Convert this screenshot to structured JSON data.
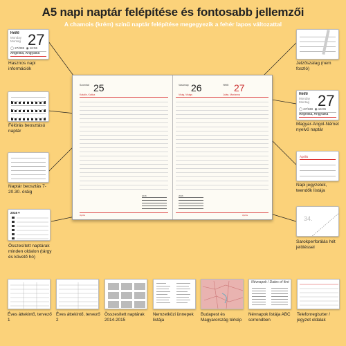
{
  "title": "A5 napi naptár felépítése és fontosabb jellemzői",
  "subtitle": "A chamois (krém) színű naptár felépítése megegyezik a fehér lapos változattal",
  "left_callouts": [
    {
      "label": "Hasznos napi információk"
    },
    {
      "label": "Félórás beosztású naptár"
    },
    {
      "label": "Naptár beosztás 7-20.30. óráig"
    },
    {
      "label": "Összesített naptárak minden oldalon (tárgy és követő hó)"
    }
  ],
  "right_callouts": [
    {
      "label": "Jelzőszalag (nem foszló)"
    },
    {
      "label": "Magyar-Angol-Német nyelvű naptár"
    },
    {
      "label": "Napi jegyzetek, teendők listája"
    },
    {
      "label": "Sarokperforálás hét jelöléssel"
    }
  ],
  "daycard_left": {
    "day_name": "Hétfő",
    "day_en": "Monday",
    "day_de": "Montag",
    "day_num": "27",
    "info1": "27/338",
    "info2": "16:06",
    "nameday": "Angelika, Angyalka"
  },
  "daycard_right": {
    "day_name": "Hétfő",
    "day_en": "Monday",
    "day_de": "Montag",
    "day_num": "27",
    "info1": "27/338",
    "info2": "16:06",
    "nameday": "Angelika, Angyalka"
  },
  "spread": {
    "left_day_num": "25",
    "left_day_name": "Szombat",
    "left_nameday": "Katalin, Katica",
    "right_day_num_a": "26",
    "right_day_num_b": "27",
    "right_day_name": "Vasárnap",
    "right_day_name_b": "Hétfő",
    "right_nameday": "Virág, Virágs",
    "right_nameday_b": "Jolán, Marianna",
    "mini_title_a": "2016",
    "mini_title_b": "2016",
    "footer_left": "Április",
    "footer_right": "Április"
  },
  "callout_card3": {
    "title": "2016 ▾"
  },
  "notes_card": {
    "header": "Április"
  },
  "thumbnails": [
    {
      "label": "Éves áttekintő, tervező 1"
    },
    {
      "label": "Éves áttekintő, tervező 2"
    },
    {
      "label": "Összesített naptárak 2014-2015"
    },
    {
      "label": "Nemzetközi ünnepek listája"
    },
    {
      "label": "Budapest és Magyarország térkép"
    },
    {
      "label": "Névnapok listája ABC sorrendben",
      "header": "Névnapok / Dates of first"
    },
    {
      "label": "Telefonregiszter / jegyzet oldalak"
    }
  ]
}
